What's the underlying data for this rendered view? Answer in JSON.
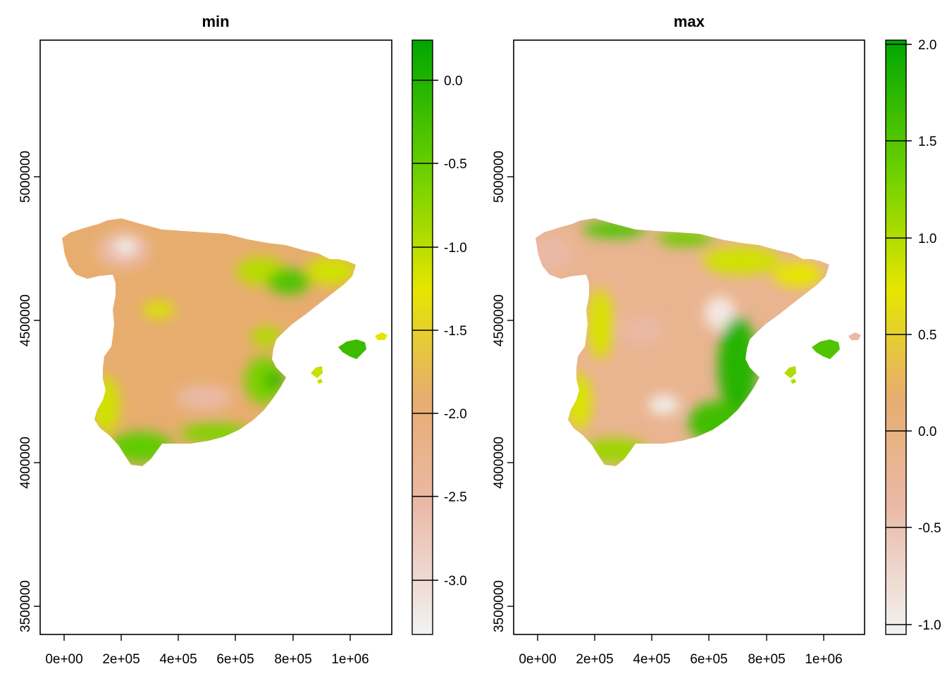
{
  "panels": [
    {
      "title": "min",
      "x_ticks": [
        "0e+00",
        "2e+05",
        "4e+05",
        "6e+05",
        "8e+05",
        "1e+06"
      ],
      "y_ticks": [
        "3500000",
        "4000000",
        "4500000",
        "5000000"
      ],
      "legend_ticks": [
        "0.0",
        "-0.5",
        "-1.0",
        "-1.5",
        "-2.0",
        "-2.5",
        "-3.0"
      ],
      "value_range": [
        -3.3,
        0.25
      ]
    },
    {
      "title": "max",
      "x_ticks": [
        "0e+00",
        "2e+05",
        "4e+05",
        "6e+05",
        "8e+05",
        "1e+06"
      ],
      "y_ticks": [
        "3500000",
        "4000000",
        "4500000",
        "5000000"
      ],
      "legend_ticks": [
        "2.0",
        "1.5",
        "1.0",
        "0.5",
        "0.0",
        "-0.5",
        "-1.0"
      ],
      "value_range": [
        -1.05,
        2.05
      ]
    }
  ],
  "colors": {
    "palette_low": "#f2f2f2",
    "palette_pink": "#eab9a6",
    "palette_tan": "#e7ad6f",
    "palette_yellow": "#e6e600",
    "palette_green": "#6cd000",
    "palette_high": "#00a600"
  }
}
